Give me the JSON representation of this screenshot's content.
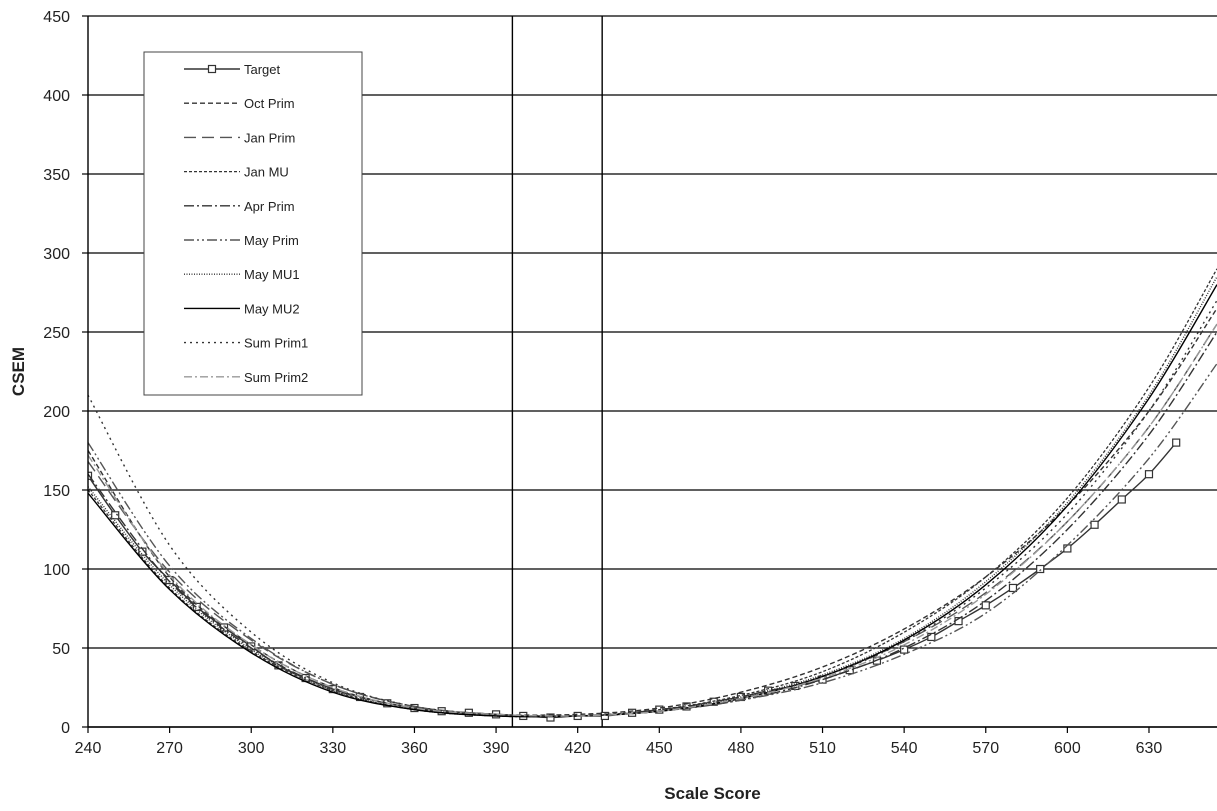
{
  "chart_data": {
    "type": "line",
    "title": "",
    "xlabel": "Scale Score",
    "ylabel": "CSEM",
    "xlim": [
      240,
      655
    ],
    "ylim": [
      0,
      450
    ],
    "x_ticks": [
      240,
      270,
      300,
      330,
      360,
      390,
      420,
      450,
      480,
      510,
      540,
      570,
      600,
      630
    ],
    "y_ticks": [
      0,
      50,
      100,
      150,
      200,
      250,
      300,
      350,
      400,
      450
    ],
    "grid": "horizontal",
    "vertical_reference_lines": [
      396,
      429
    ],
    "legend_position": "top-left",
    "series": [
      {
        "name": "Target",
        "marker": "square",
        "x": [
          240,
          250,
          260,
          270,
          280,
          290,
          300,
          310,
          320,
          330,
          340,
          350,
          360,
          370,
          380,
          390,
          400,
          410,
          420,
          430,
          440,
          450,
          460,
          470,
          480,
          490,
          500,
          510,
          520,
          530,
          540,
          550,
          560,
          570,
          580,
          590,
          600,
          610,
          620,
          630,
          640
        ],
        "y": [
          159,
          134,
          111,
          93,
          76,
          63,
          51,
          39,
          31,
          24,
          19,
          15,
          12,
          10,
          9,
          8,
          7,
          6,
          7,
          7,
          9,
          11,
          13,
          16,
          19,
          23,
          26,
          30,
          36,
          42,
          49,
          57,
          67,
          77,
          88,
          100,
          113,
          128,
          144,
          160,
          180
        ]
      },
      {
        "name": "Oct Prim",
        "x": [
          240,
          270,
          300,
          330,
          360,
          390,
          420,
          450,
          480,
          510,
          540,
          570,
          600,
          630,
          655
        ],
        "y": [
          175,
          95,
          52,
          25,
          12,
          8,
          8,
          12,
          22,
          38,
          62,
          95,
          140,
          200,
          265
        ]
      },
      {
        "name": "Jan Prim",
        "x": [
          240,
          270,
          300,
          330,
          360,
          390,
          420,
          450,
          480,
          510,
          540,
          570,
          600,
          630,
          655
        ],
        "y": [
          168,
          98,
          55,
          27,
          13,
          8,
          7,
          10,
          18,
          32,
          54,
          85,
          130,
          190,
          255
        ]
      },
      {
        "name": "Jan MU",
        "x": [
          240,
          270,
          300,
          330,
          360,
          390,
          420,
          450,
          480,
          510,
          540,
          570,
          600,
          630,
          655
        ],
        "y": [
          150,
          88,
          48,
          23,
          11,
          7,
          7,
          11,
          20,
          35,
          60,
          95,
          145,
          215,
          290
        ]
      },
      {
        "name": "Apr Prim",
        "x": [
          240,
          270,
          300,
          330,
          360,
          390,
          420,
          450,
          480,
          510,
          540,
          570,
          600,
          630,
          655
        ],
        "y": [
          160,
          92,
          50,
          24,
          12,
          7,
          7,
          10,
          17,
          30,
          50,
          80,
          125,
          185,
          250
        ]
      },
      {
        "name": "May Prim",
        "x": [
          240,
          270,
          300,
          330,
          360,
          390,
          420,
          450,
          480,
          510,
          540,
          570,
          600,
          630,
          655
        ],
        "y": [
          180,
          102,
          56,
          27,
          13,
          8,
          7,
          10,
          17,
          28,
          46,
          72,
          115,
          170,
          230
        ]
      },
      {
        "name": "May MU1",
        "x": [
          240,
          270,
          300,
          330,
          360,
          390,
          420,
          450,
          480,
          510,
          540,
          570,
          600,
          630,
          655
        ],
        "y": [
          152,
          90,
          49,
          23,
          11,
          7,
          7,
          10,
          19,
          33,
          56,
          92,
          142,
          210,
          285
        ]
      },
      {
        "name": "May MU2",
        "x": [
          240,
          270,
          300,
          330,
          360,
          390,
          420,
          450,
          480,
          510,
          540,
          570,
          600,
          630,
          655
        ],
        "y": [
          148,
          87,
          47,
          22,
          11,
          7,
          7,
          10,
          18,
          32,
          55,
          90,
          140,
          208,
          280
        ]
      },
      {
        "name": "Sum Prim1",
        "x": [
          240,
          270,
          300,
          330,
          360,
          390,
          420,
          450,
          480,
          510,
          540,
          570,
          600,
          630,
          655
        ],
        "y": [
          210,
          115,
          60,
          28,
          13,
          8,
          7,
          10,
          18,
          32,
          54,
          88,
          135,
          200,
          270
        ]
      },
      {
        "name": "Sum Prim2",
        "x": [
          240,
          270,
          300,
          330,
          360,
          390,
          420,
          450,
          480,
          510,
          540,
          570,
          600,
          630,
          655
        ],
        "y": [
          172,
          96,
          52,
          25,
          12,
          8,
          7,
          10,
          18,
          31,
          52,
          84,
          130,
          190,
          255
        ]
      }
    ]
  }
}
